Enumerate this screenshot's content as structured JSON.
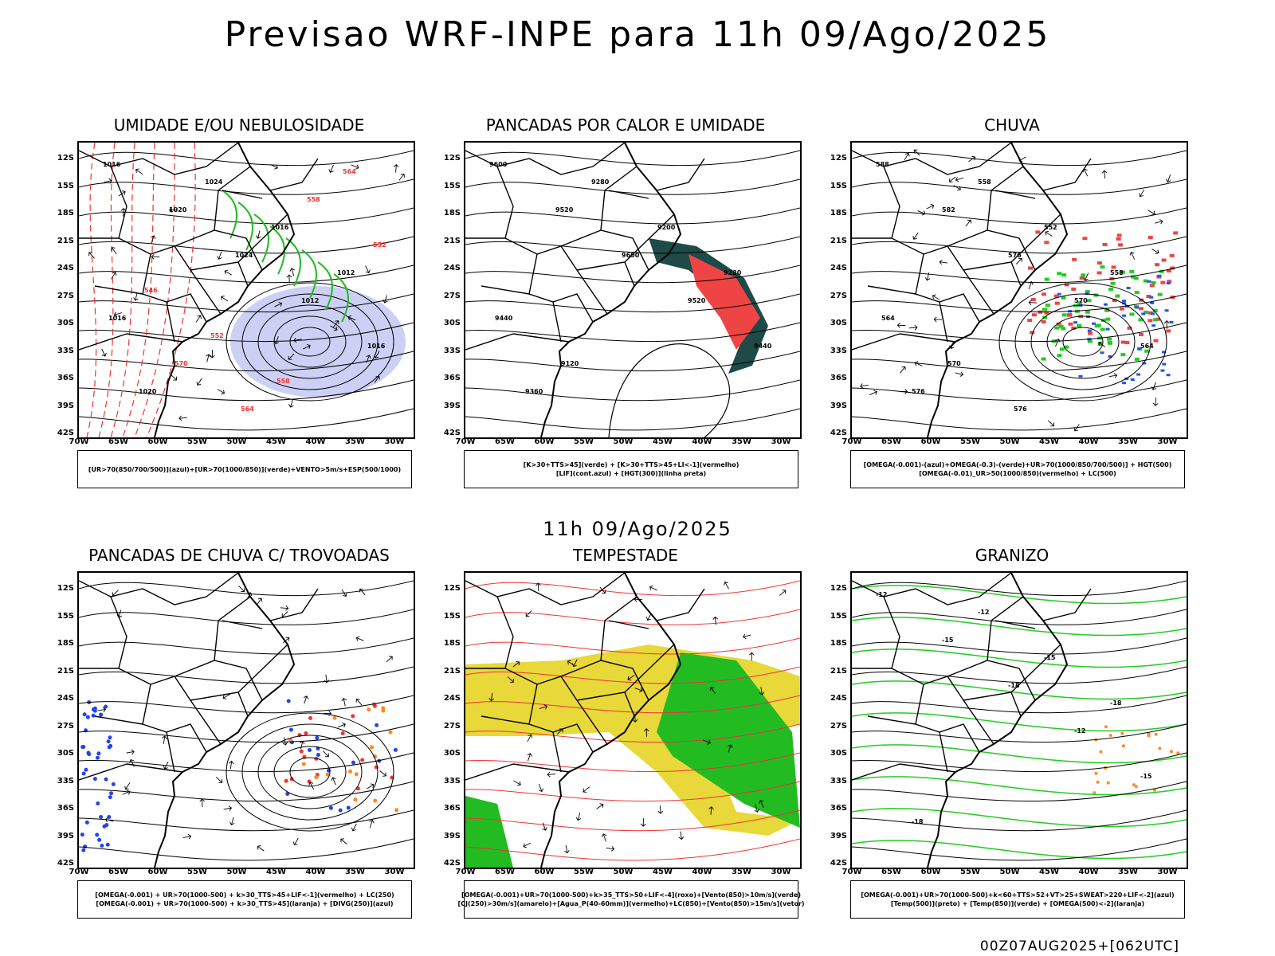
{
  "title": "Previsao WRF-INPE  para 11h 09/Ago/2025",
  "mid_date": "11h 09/Ago/2025",
  "footer": "00Z07AUG2025+[062UTC]",
  "lat_ticks": [
    "12S",
    "15S",
    "18S",
    "21S",
    "24S",
    "27S",
    "30S",
    "33S",
    "36S",
    "39S",
    "42S"
  ],
  "lon_ticks": [
    "70W",
    "65W",
    "60W",
    "55W",
    "50W",
    "45W",
    "40W",
    "35W",
    "30W"
  ],
  "panels": [
    {
      "title": "UMIDADE E/OU NEBULOSIDADE",
      "legend": [
        "[UR>70(850/700/500)](azul)+[UR>70(1000/850)](verde)+VENTO>5m/s+ESP(500/1000)"
      ],
      "contour_labels": [
        "1016",
        "1020",
        "1024",
        "1012",
        "1016",
        "1020",
        "1024",
        "1016",
        "1012",
        "1016",
        "570",
        "564",
        "558",
        "552",
        "546",
        "552",
        "558",
        "564"
      ]
    },
    {
      "title": "PANCADAS POR CALOR E UMIDADE",
      "legend": [
        "[K>30+TTS>45](verde) + [K>30+TTS>45+LI<-1](vermelho)",
        "[LIF](cont.azul) + [HGT(300)](linha preta)"
      ],
      "contour_labels": [
        "9600",
        "9520",
        "9600",
        "9520",
        "9440",
        "9360",
        "9280",
        "9200",
        "9280",
        "9440",
        "9120"
      ]
    },
    {
      "title": "CHUVA",
      "legend": [
        "[OMEGA(-0.001)-(azul)+OMEGA(-0.3)-(verde)+UR>70(1000/850/700/500)] + HGT(500)",
        "[OMEGA(-0.01)_UR>50(1000/850)(vermelho) + LC(500)"
      ],
      "contour_labels": [
        "588",
        "582",
        "576",
        "570",
        "564",
        "576",
        "558",
        "552",
        "558",
        "564",
        "570",
        "576"
      ]
    },
    {
      "title": "PANCADAS DE CHUVA C/ TROVOADAS",
      "legend": [
        "[OMEGA(-0.001) + UR>70(1000-500) + k>30_TTS>45+LIF<-1](vermelho) + LC(250)",
        "[OMEGA(-0.001) + UR>70(1000-500) + k>30_TTS>45](laranja) + [DIVG(250)](azul)"
      ],
      "contour_labels": []
    },
    {
      "title": "TEMPESTADE",
      "legend": [
        "[OMEGA(-0.001)+UR>70(1000-500)+k>35_TTS>50+LIF<-4](roxo)+[Vento(850)>10m/s](verde)",
        "[CJ(250)>30m/s](amarelo)+[Agua_P(40-60mm)](vermelho)+LC(850)+[Vento(850)>15m/s](vetor)"
      ],
      "contour_labels": []
    },
    {
      "title": "GRANIZO",
      "legend": [
        "[OMEGA(-0.001)+UR>70(1000-500)+k<60+TTS>52+VT>25+SWEAT>220+LIF<-2](azul)",
        "[Temp(500)](preto) + [Temp(850)](verde) + [OMEGA(500)<-2](laranja)"
      ],
      "contour_labels": [
        "-12",
        "-15",
        "-18",
        "-12",
        "-15",
        "-18",
        "-12",
        "-15",
        "-18"
      ]
    }
  ]
}
